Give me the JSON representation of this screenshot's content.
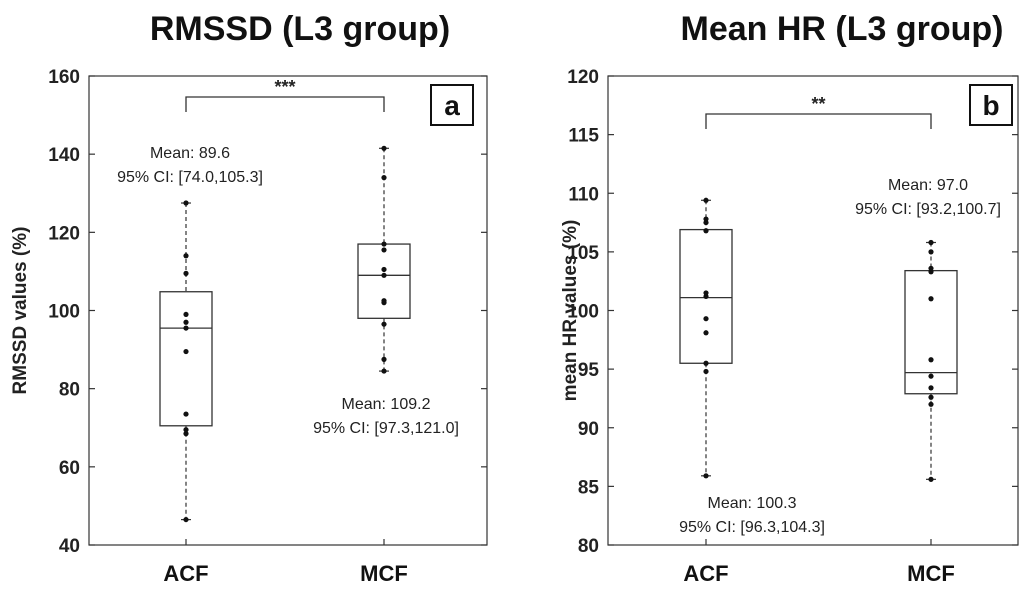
{
  "chart_data": [
    {
      "type": "box",
      "title": "RMSSD (L3 group)",
      "panel_label": "a",
      "ylabel": "RMSSD values (%)",
      "ylim": [
        40,
        160
      ],
      "yticks": [
        40,
        60,
        80,
        100,
        120,
        140,
        160
      ],
      "categories": [
        "ACF",
        "MCF"
      ],
      "boxes": [
        {
          "category": "ACF",
          "whisker_low": 46.5,
          "q1": 70.5,
          "median": 95.5,
          "q3": 104.8,
          "whisker_high": 127.5,
          "points": [
            46.5,
            68.5,
            69.5,
            73.5,
            89.5,
            95.5,
            97.0,
            99.0,
            109.5,
            114.0,
            127.5
          ]
        },
        {
          "category": "MCF",
          "whisker_low": 84.5,
          "q1": 98.0,
          "median": 109.0,
          "q3": 117.0,
          "whisker_high": 141.5,
          "points": [
            84.5,
            87.5,
            96.5,
            102.0,
            102.5,
            109.0,
            110.5,
            115.5,
            117.0,
            134.0,
            141.5
          ]
        }
      ],
      "annotations": [
        {
          "category": "ACF",
          "line1": "Mean: 89.6",
          "line2": "95% CI: [74.0,105.3]"
        },
        {
          "category": "MCF",
          "line1": "Mean: 109.2",
          "line2": "95% CI: [97.3,121.0]"
        }
      ],
      "significance": "***",
      "grid": false
    },
    {
      "type": "box",
      "title": "Mean HR (L3 group)",
      "panel_label": "b",
      "ylabel": "mean HR values (%)",
      "ylim": [
        80,
        120
      ],
      "yticks": [
        80,
        85,
        90,
        95,
        100,
        105,
        110,
        115,
        120
      ],
      "categories": [
        "ACF",
        "MCF"
      ],
      "boxes": [
        {
          "category": "ACF",
          "whisker_low": 85.9,
          "q1": 95.5,
          "median": 101.1,
          "q3": 106.9,
          "whisker_high": 109.4,
          "points": [
            85.9,
            94.8,
            95.5,
            98.1,
            99.3,
            101.2,
            101.5,
            106.8,
            107.5,
            107.8,
            109.4
          ]
        },
        {
          "category": "MCF",
          "whisker_low": 85.6,
          "q1": 92.9,
          "median": 94.7,
          "q3": 103.4,
          "whisker_high": 105.8,
          "points": [
            85.6,
            92.0,
            92.6,
            93.4,
            94.4,
            95.8,
            101.0,
            103.3,
            103.6,
            105.0,
            105.8
          ]
        }
      ],
      "annotations": [
        {
          "category": "ACF",
          "line1": "Mean: 100.3",
          "line2": "95% CI: [96.3,104.3]"
        },
        {
          "category": "MCF",
          "line1": "Mean: 97.0",
          "line2": "95% CI: [93.2,100.7]"
        }
      ],
      "significance": "**",
      "grid": false
    }
  ]
}
